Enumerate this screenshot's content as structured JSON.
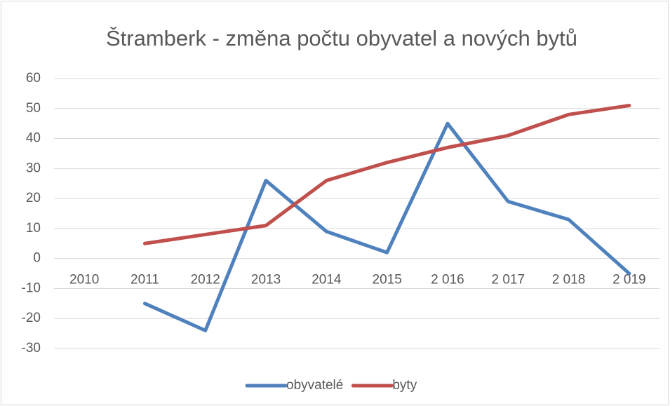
{
  "chart_data": {
    "type": "line",
    "title": "Štramberk - změna počtu obyvatel a nových bytů",
    "categories": [
      "2010",
      "2011",
      "2012",
      "2013",
      "2014",
      "2015",
      "2 016",
      "2 017",
      "2 018",
      "2 019"
    ],
    "series": [
      {
        "name": "obyvatelé",
        "color": "#4f81bd",
        "values": [
          null,
          -15,
          -24,
          26,
          9,
          2,
          45,
          19,
          13,
          -5
        ]
      },
      {
        "name": "byty",
        "color": "#c0504d",
        "values": [
          null,
          5,
          8,
          11,
          26,
          32,
          37,
          41,
          48,
          51
        ]
      }
    ],
    "ylim": [
      -30,
      60
    ],
    "yticks": [
      -30,
      -20,
      -10,
      0,
      10,
      20,
      30,
      40,
      50,
      60
    ],
    "grid": true,
    "legend": "bottom"
  }
}
